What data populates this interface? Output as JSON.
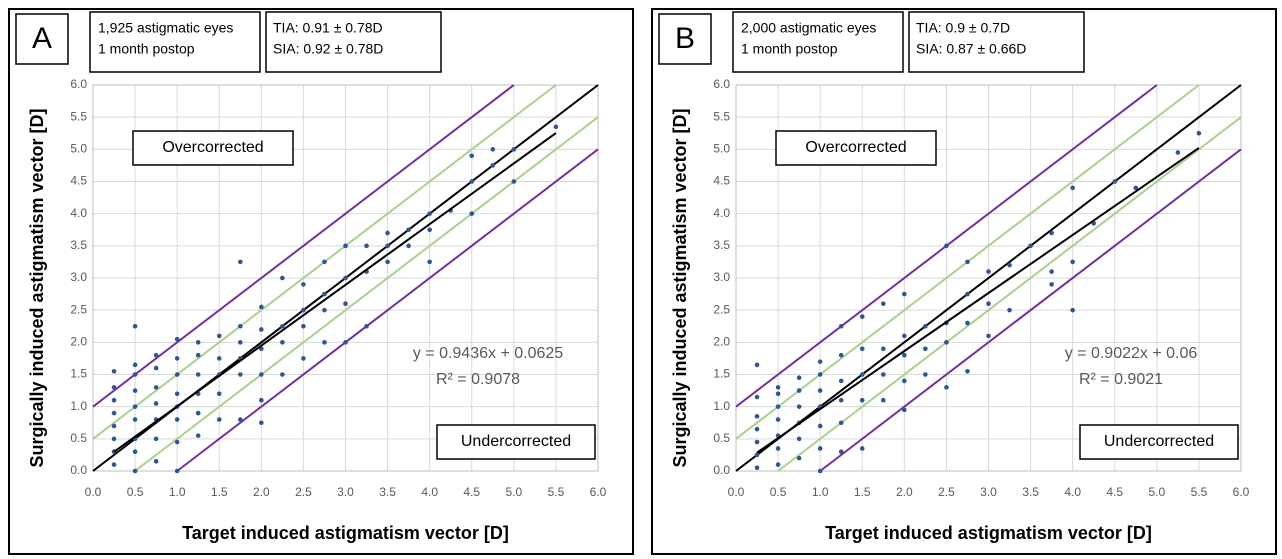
{
  "chart_data": [
    {
      "type": "scatter",
      "panel_label": "A",
      "info": [
        "1,925 astigmatic eyes",
        "1 month postop"
      ],
      "stats": [
        "TIA: 0.91 ± 0.78D",
        "SIA: 0.92 ± 0.78D"
      ],
      "annotations": [
        "Overcorrected",
        "Undercorrected"
      ],
      "x_label": "Target induced astigmatism vector [D]",
      "y_label": "Surgically induced astigmatism vector [D]",
      "color": "#2e5597",
      "grid": true,
      "trendline": {
        "label": "y = 0.9436x + 0.0625",
        "r2_label": "R² = 0.9078",
        "slope": 0.9436,
        "intercept": 0.0625,
        "xlim": [
          0.25,
          5.5
        ],
        "color": "#000000"
      },
      "reference_lines": [
        {
          "offset": 0,
          "color": "#000000"
        },
        {
          "offset": 0.5,
          "color": "#a9d18e"
        },
        {
          "offset": -0.5,
          "color": "#a9d18e"
        },
        {
          "offset": 1,
          "color": "#7030a0"
        },
        {
          "offset": -1,
          "color": "#7030a0"
        }
      ],
      "xlim": [
        0,
        6
      ],
      "ylim": [
        0,
        6
      ],
      "xticks": [
        {
          "value": 0,
          "label": "0.0"
        },
        0.5,
        {
          "value": 1,
          "label": "1.0"
        },
        1.5,
        {
          "value": 2,
          "label": "2.0"
        },
        2.5,
        {
          "value": 3,
          "label": "3.0"
        },
        3.5,
        {
          "value": 4,
          "label": "4.0"
        },
        4.5,
        {
          "value": 5,
          "label": "5.0"
        },
        5.5,
        {
          "value": 6,
          "label": "6.0"
        }
      ],
      "yticks": [
        {
          "value": 0,
          "label": "0.0"
        },
        0.5,
        {
          "value": 1,
          "label": "1.0"
        },
        1.5,
        {
          "value": 2,
          "label": "2.0"
        },
        2.5,
        {
          "value": 3,
          "label": "3.0"
        },
        3.5,
        {
          "value": 4,
          "label": "4.0"
        },
        4.5,
        {
          "value": 5,
          "label": "5.0"
        },
        5.5,
        {
          "value": 6,
          "label": "6.0"
        }
      ],
      "x": [
        0.25,
        0.25,
        0.25,
        0.25,
        0.25,
        0.25,
        0.25,
        0.25,
        0.5,
        0.5,
        0.5,
        0.5,
        0.5,
        0.5,
        0.5,
        0.5,
        0.5,
        0.75,
        0.75,
        0.75,
        0.75,
        0.75,
        0.75,
        0.75,
        1,
        1,
        1,
        1,
        1,
        1,
        1,
        1,
        1.25,
        1.25,
        1.25,
        1.25,
        1.25,
        1.25,
        1.5,
        1.5,
        1.5,
        1.5,
        1.5,
        1.75,
        1.75,
        1.75,
        1.75,
        1.75,
        1.75,
        2,
        2,
        2,
        2,
        2,
        2,
        2.25,
        2.25,
        2.25,
        2.25,
        2.5,
        2.5,
        2.5,
        2.5,
        2.75,
        2.75,
        2.75,
        2.75,
        3,
        3,
        3,
        3,
        3.25,
        3.25,
        3.25,
        3.5,
        3.5,
        3.5,
        3.75,
        3.75,
        4,
        4,
        4,
        4.25,
        4.5,
        4.5,
        4.5,
        4.75,
        4.75,
        5,
        5,
        5.5
      ],
      "values": [
        0.1,
        0.3,
        0.5,
        0.7,
        0.9,
        1.1,
        1.3,
        1.55,
        0,
        0.3,
        0.5,
        0.8,
        1,
        1.25,
        1.5,
        1.65,
        2.25,
        0.15,
        0.5,
        0.8,
        1.05,
        1.3,
        1.6,
        1.8,
        0,
        0.45,
        0.8,
        1,
        1.2,
        1.5,
        1.75,
        2.05,
        0.55,
        0.9,
        1.2,
        1.5,
        1.8,
        2,
        0.8,
        1.2,
        1.5,
        1.75,
        2.1,
        0.8,
        1.5,
        1.75,
        2,
        2.25,
        3.25,
        0.75,
        1.1,
        1.5,
        1.9,
        2.2,
        2.55,
        1.5,
        2,
        2.25,
        3,
        1.75,
        2.25,
        2.5,
        2.9,
        2,
        2.5,
        2.75,
        3.25,
        2,
        2.6,
        3,
        3.5,
        2.25,
        3.1,
        3.5,
        3.25,
        3.5,
        3.7,
        3.5,
        3.75,
        3.25,
        3.75,
        4,
        4.05,
        4,
        4.5,
        4.9,
        4.75,
        5,
        4.5,
        5,
        5.35
      ]
    },
    {
      "type": "scatter",
      "panel_label": "B",
      "info": [
        "2,000 astigmatic eyes",
        "1 month postop"
      ],
      "stats": [
        "TIA: 0.9 ± 0.7D",
        "SIA: 0.87 ± 0.66D"
      ],
      "annotations": [
        "Overcorrected",
        "Undercorrected"
      ],
      "x_label": "Target induced astigmatism vector [D]",
      "y_label": "Surgically induced astigmatism vector [D]",
      "color": "#2e5597",
      "grid": true,
      "trendline": {
        "label": "y = 0.9022x + 0.06",
        "r2_label": "R² = 0.9021",
        "slope": 0.9022,
        "intercept": 0.06,
        "xlim": [
          0.25,
          5.5
        ],
        "color": "#000000"
      },
      "reference_lines": [
        {
          "offset": 0,
          "color": "#000000"
        },
        {
          "offset": 0.5,
          "color": "#a9d18e"
        },
        {
          "offset": -0.5,
          "color": "#a9d18e"
        },
        {
          "offset": 1,
          "color": "#7030a0"
        },
        {
          "offset": -1,
          "color": "#7030a0"
        }
      ],
      "xlim": [
        0,
        6
      ],
      "ylim": [
        0,
        6
      ],
      "xticks": [
        {
          "value": 0,
          "label": "0.0"
        },
        0.5,
        {
          "value": 1,
          "label": "1.0"
        },
        1.5,
        {
          "value": 2,
          "label": "2.0"
        },
        2.5,
        {
          "value": 3,
          "label": "3.0"
        },
        3.5,
        {
          "value": 4,
          "label": "4.0"
        },
        4.5,
        {
          "value": 5,
          "label": "5.0"
        },
        5.5,
        {
          "value": 6,
          "label": "6.0"
        }
      ],
      "yticks": [
        {
          "value": 0,
          "label": "0.0"
        },
        0.5,
        {
          "value": 1,
          "label": "1.0"
        },
        1.5,
        {
          "value": 2,
          "label": "2.0"
        },
        2.5,
        {
          "value": 3,
          "label": "3.0"
        },
        3.5,
        {
          "value": 4,
          "label": "4.0"
        },
        4.5,
        {
          "value": 5,
          "label": "5.0"
        },
        5.5,
        {
          "value": 6,
          "label": "6.0"
        }
      ],
      "x": [
        0.25,
        0.25,
        0.25,
        0.25,
        0.25,
        0.25,
        0.25,
        0.5,
        0.5,
        0.5,
        0.5,
        0.5,
        0.5,
        0.5,
        0.75,
        0.75,
        0.75,
        0.75,
        0.75,
        0.75,
        1,
        1,
        1,
        1,
        1,
        1,
        1,
        1.25,
        1.25,
        1.25,
        1.25,
        1.25,
        1.25,
        1.5,
        1.5,
        1.5,
        1.5,
        1.5,
        1.75,
        1.75,
        1.75,
        1.75,
        2,
        2,
        2,
        2,
        2,
        2.25,
        2.25,
        2.25,
        2.5,
        2.5,
        2.5,
        2.5,
        2.75,
        2.75,
        2.75,
        2.75,
        3,
        3,
        3,
        3.25,
        3.25,
        3.5,
        3.75,
        3.75,
        3.75,
        4,
        4,
        4,
        4.25,
        4.5,
        4.75,
        5.25,
        5.5
      ],
      "values": [
        0.05,
        0.25,
        0.45,
        0.65,
        0.85,
        1.15,
        1.65,
        0.1,
        0.35,
        0.55,
        0.8,
        1,
        1.2,
        1.3,
        0.2,
        0.5,
        0.75,
        1,
        1.25,
        1.45,
        0,
        0.35,
        0.7,
        1,
        1.25,
        1.5,
        1.7,
        0.3,
        0.75,
        1.1,
        1.4,
        1.8,
        2.25,
        0.35,
        1.1,
        1.5,
        1.9,
        2.4,
        1.1,
        1.5,
        1.9,
        2.6,
        0.95,
        1.4,
        1.8,
        2.1,
        2.75,
        1.5,
        1.9,
        2.25,
        1.3,
        2,
        2.3,
        3.5,
        1.55,
        2.3,
        2.75,
        3.25,
        2.1,
        2.6,
        3.1,
        2.5,
        3.2,
        3.5,
        2.9,
        3.1,
        3.7,
        2.5,
        3.25,
        4.4,
        3.85,
        4.5,
        4.4,
        4.95,
        5.25
      ]
    }
  ]
}
